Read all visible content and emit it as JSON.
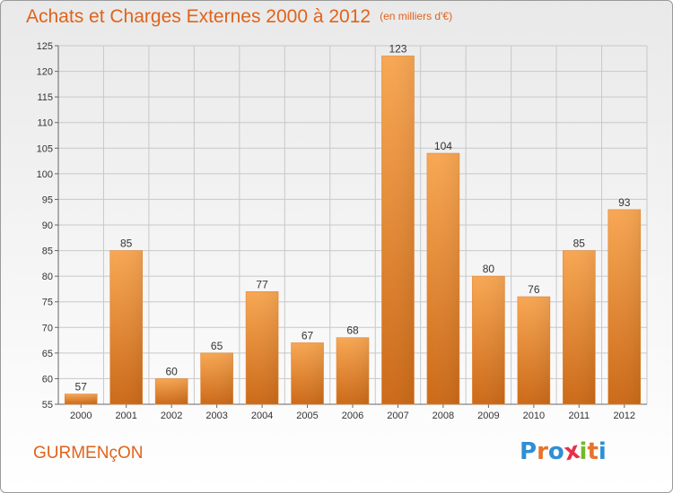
{
  "header": {
    "title": "Achats et Charges Externes 2000 à 2012",
    "subtitle": "(en milliers d'€)"
  },
  "footer": {
    "place": "GURMENçON",
    "logo": {
      "text": "Proxiti",
      "letters": [
        {
          "char": "P",
          "color": "#2e8fd6"
        },
        {
          "char": "r",
          "color": "#e8722a"
        },
        {
          "char": "o",
          "color": "#2e8fd6"
        },
        {
          "char": "x",
          "color": "#e8304a"
        },
        {
          "char": "i",
          "color": "#76b82a"
        },
        {
          "char": "t",
          "color": "#e8722a"
        },
        {
          "char": "i",
          "color": "#2e8fd6"
        }
      ]
    }
  },
  "colors": {
    "accent": "#e0631b",
    "bar_light": "#f7a24f",
    "bar_dark": "#cc6a18",
    "grid": "#c8c8c8"
  },
  "chart_data": {
    "type": "bar",
    "title": "Achats et Charges Externes 2000 à 2012",
    "subtitle": "(en milliers d'€)",
    "xlabel": "",
    "ylabel": "",
    "categories": [
      "2000",
      "2001",
      "2002",
      "2003",
      "2004",
      "2005",
      "2006",
      "2007",
      "2008",
      "2009",
      "2010",
      "2011",
      "2012"
    ],
    "values": [
      57,
      85,
      60,
      65,
      77,
      67,
      68,
      123,
      104,
      80,
      76,
      85,
      93
    ],
    "ylim": [
      55,
      125
    ],
    "yticks": [
      55,
      60,
      65,
      70,
      75,
      80,
      85,
      90,
      95,
      100,
      105,
      110,
      115,
      120,
      125
    ],
    "grid": true,
    "data_labels": true
  }
}
